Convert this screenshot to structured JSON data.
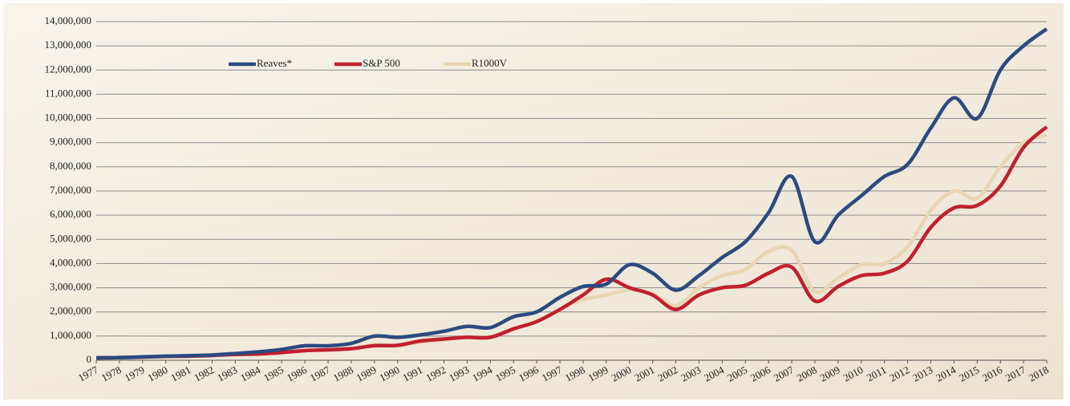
{
  "chart_data": {
    "type": "line",
    "categories": [
      "1977",
      "1978",
      "1979",
      "1980",
      "1981",
      "1982",
      "1983",
      "1984",
      "1985",
      "1986",
      "1987",
      "1988",
      "1989",
      "1990",
      "1991",
      "1992",
      "1993",
      "1994",
      "1995",
      "1996",
      "1997",
      "1998",
      "1999",
      "2000",
      "2001",
      "2002",
      "2003",
      "2004",
      "2005",
      "2006",
      "2007",
      "2008",
      "2009",
      "2010",
      "2011",
      "2012",
      "2013",
      "2014",
      "2015",
      "2016",
      "2017",
      "2018"
    ],
    "series": [
      {
        "name": "Reaves*",
        "color": "#2c4a80",
        "values": [
          100000,
          110000,
          140000,
          170000,
          190000,
          220000,
          280000,
          350000,
          450000,
          600000,
          600000,
          700000,
          1000000,
          950000,
          1050000,
          1200000,
          1400000,
          1350000,
          1800000,
          2000000,
          2600000,
          3050000,
          3150000,
          3950000,
          3600000,
          2900000,
          3500000,
          4250000,
          4900000,
          6100000,
          7600000,
          4900000,
          6000000,
          6800000,
          7600000,
          8100000,
          9600000,
          10850000,
          10000000,
          12000000,
          13000000,
          13700000
        ]
      },
      {
        "name": "S&P 500",
        "color": "#c0202e",
        "values": [
          100000,
          110000,
          130000,
          160000,
          170000,
          200000,
          240000,
          260000,
          320000,
          400000,
          430000,
          480000,
          600000,
          620000,
          800000,
          880000,
          950000,
          950000,
          1300000,
          1600000,
          2100000,
          2700000,
          3350000,
          3000000,
          2700000,
          2100000,
          2700000,
          3000000,
          3100000,
          3600000,
          3850000,
          2450000,
          3050000,
          3500000,
          3600000,
          4100000,
          5500000,
          6300000,
          6400000,
          7200000,
          8800000,
          9650000
        ]
      },
      {
        "name": "R1000V",
        "color": "#e8d6b4",
        "values": [
          100000,
          110000,
          130000,
          160000,
          170000,
          200000,
          240000,
          270000,
          320000,
          400000,
          430000,
          480000,
          650000,
          600000,
          750000,
          850000,
          950000,
          950000,
          1300000,
          1600000,
          2100000,
          2500000,
          2700000,
          2900000,
          2750000,
          2250000,
          3000000,
          3500000,
          3750000,
          4500000,
          4550000,
          2850000,
          3400000,
          3950000,
          4000000,
          4700000,
          6200000,
          7000000,
          6700000,
          8000000,
          9000000,
          9300000
        ]
      }
    ],
    "ylim": [
      0,
      14000000
    ],
    "yticks": [
      0,
      {
        "value": 1000000,
        "label": "1,000,000"
      },
      {
        "value": 2000000,
        "label": "2,000,000"
      },
      {
        "value": 3000000,
        "label": "3,000,000"
      },
      {
        "value": 4000000,
        "label": "4,000,000"
      },
      {
        "value": 5000000,
        "label": "5,000,000"
      },
      {
        "value": 6000000,
        "label": "6,000,000"
      },
      {
        "value": 7000000,
        "label": "7,000,000"
      },
      {
        "value": 8000000,
        "label": "8,000,000"
      },
      {
        "value": 9000000,
        "label": "9,000,000"
      },
      {
        "value": 10000000,
        "label": "10,000,000"
      },
      {
        "value": 11000000,
        "label": "11,000,000"
      },
      {
        "value": 12000000,
        "label": "12,000,000"
      },
      {
        "value": 13000000,
        "label": "13,000,000"
      },
      {
        "value": 14000000,
        "label": "14,000,000"
      }
    ],
    "grid": true
  }
}
